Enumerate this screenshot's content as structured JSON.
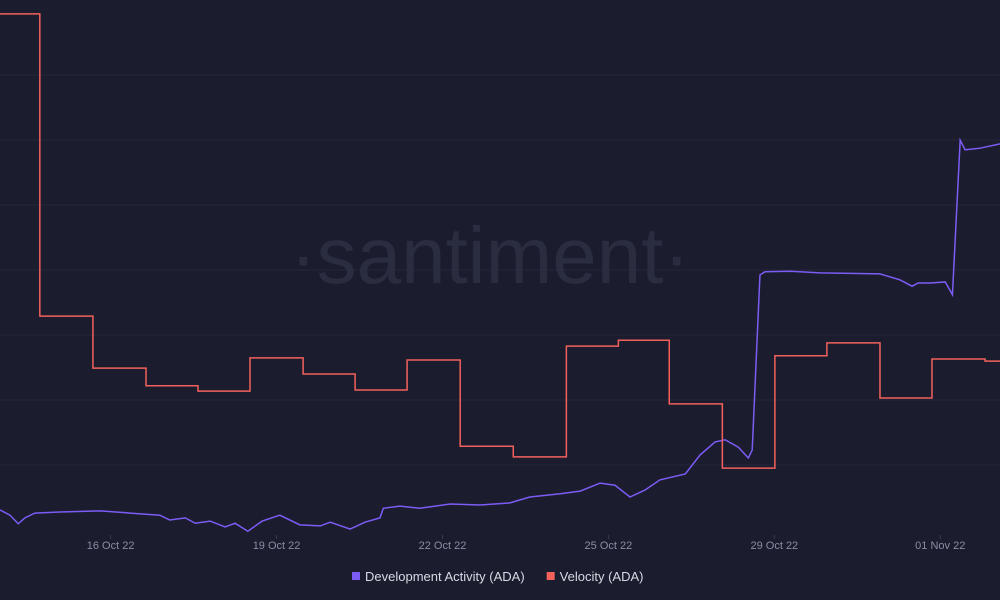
{
  "chart_data": {
    "type": "line",
    "watermark": "·santiment·",
    "xlim": [
      0,
      18.08
    ],
    "xticks": [
      {
        "value": 2,
        "label": "16 Oct 22"
      },
      {
        "value": 5,
        "label": "19 Oct 22"
      },
      {
        "value": 8,
        "label": "22 Oct 22"
      },
      {
        "value": 11,
        "label": "25 Oct 22"
      },
      {
        "value": 14,
        "label": "29 Oct 22"
      },
      {
        "value": 17,
        "label": "01 Nov 22"
      }
    ],
    "ylim": [
      0,
      100
    ],
    "series": [
      {
        "name": "Development Activity (ADA)",
        "color": "#7c5cf5",
        "step": false,
        "x": [
          0,
          0.18,
          0.33,
          0.45,
          0.63,
          1.08,
          1.81,
          2.35,
          2.89,
          3.07,
          3.35,
          3.53,
          3.8,
          4.07,
          4.25,
          4.48,
          4.74,
          5.06,
          5.42,
          5.79,
          5.97,
          6.33,
          6.6,
          6.87,
          6.93,
          7.23,
          7.59,
          8.14,
          8.68,
          9.22,
          9.58,
          10.13,
          10.49,
          10.85,
          11.12,
          11.39,
          11.66,
          11.93,
          12.39,
          12.66,
          12.93,
          13.11,
          13.35,
          13.53,
          13.6,
          13.74,
          13.83,
          14.29,
          14.83,
          15.91,
          16.27,
          16.49,
          16.6,
          16.82,
          17.09,
          17.22,
          17.36,
          17.45,
          17.72,
          18.08
        ],
        "values": [
          4.7,
          3.7,
          2.1,
          3.2,
          4.1,
          4.3,
          4.5,
          4.1,
          3.7,
          2.8,
          3.2,
          2.2,
          2.6,
          1.5,
          2.2,
          0.7,
          2.6,
          3.7,
          1.9,
          1.7,
          2.4,
          1.1,
          2.4,
          3.2,
          5.0,
          5.4,
          5.0,
          5.8,
          5.6,
          6.0,
          7.1,
          7.7,
          8.2,
          9.7,
          9.3,
          7.1,
          8.4,
          10.3,
          11.4,
          15.0,
          17.4,
          17.8,
          16.4,
          14.4,
          15.9,
          48.6,
          49.2,
          49.3,
          49.0,
          48.8,
          47.7,
          46.5,
          47.1,
          47.1,
          47.3,
          44.9,
          73.8,
          72.0,
          72.3,
          73.1
        ]
      },
      {
        "name": "Velocity (ADA)",
        "color": "#f2615c",
        "step": true,
        "x": [
          0,
          0.72,
          1.68,
          2.64,
          3.58,
          4.52,
          5.48,
          6.42,
          7.36,
          8.32,
          9.28,
          10.24,
          11.18,
          12.1,
          13.06,
          14.01,
          14.95,
          15.91,
          16.85,
          17.81,
          18.08
        ],
        "values": [
          97.4,
          40.9,
          31.2,
          27.9,
          26.9,
          33.1,
          30.1,
          27.1,
          32.7,
          16.6,
          14.6,
          35.3,
          36.4,
          24.5,
          12.5,
          33.5,
          35.9,
          25.6,
          32.9,
          32.5,
          32.5
        ]
      }
    ]
  }
}
